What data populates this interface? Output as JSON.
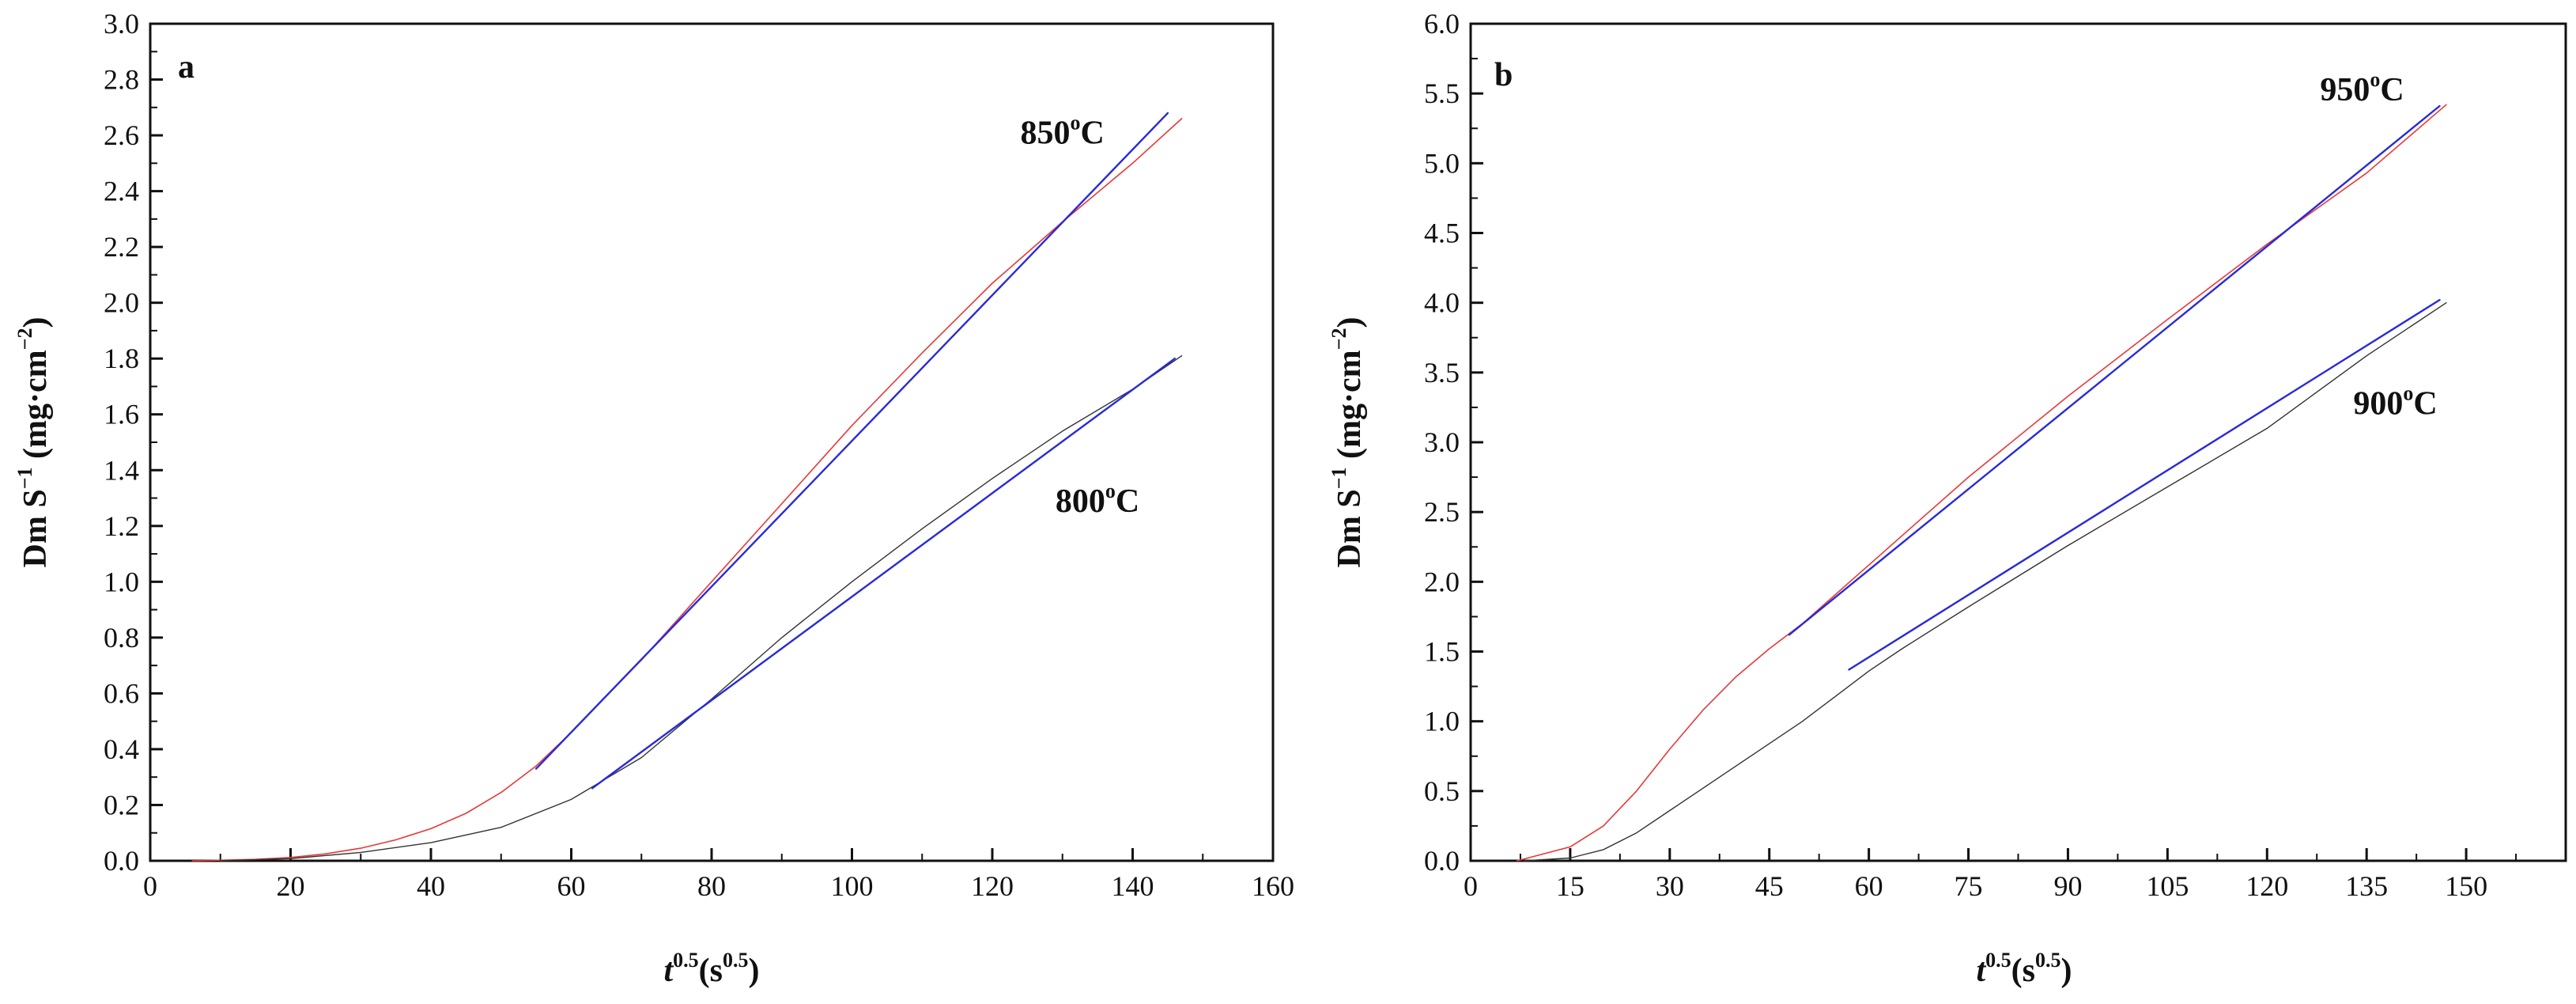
{
  "chart_data": [
    {
      "panel": "a",
      "type": "line",
      "xlabel": {
        "main": "t",
        "sup": "0.5",
        "unit_open": "(s",
        "unit_sup": "0.5",
        "unit_close": ")"
      },
      "ylabel": {
        "main": "Dm S",
        "sup": "−1",
        "unit_open": " (mg·cm",
        "unit_sup": "−2",
        "unit_close": ")"
      },
      "xlim": [
        0,
        160
      ],
      "ylim": [
        0,
        3.0
      ],
      "xticks": [
        "0",
        "20",
        "40",
        "60",
        "80",
        "100",
        "120",
        "140",
        "160"
      ],
      "yticks": [
        "0.0",
        "0.2",
        "0.4",
        "0.6",
        "0.8",
        "1.0",
        "1.2",
        "1.4",
        "1.6",
        "1.8",
        "2.0",
        "2.2",
        "2.4",
        "2.6",
        "2.8",
        "3.0"
      ],
      "annotations": [
        {
          "text": "850",
          "sup": "o",
          "suffix": "C",
          "x": 124,
          "y": 2.57
        },
        {
          "text": "800",
          "sup": "o",
          "suffix": "C",
          "x": 129,
          "y": 1.25
        }
      ],
      "series": [
        {
          "name": "850°C data",
          "color": "#e83838",
          "width": 1.6,
          "points": [
            [
              6,
              0
            ],
            [
              15,
              0.005
            ],
            [
              20,
              0.012
            ],
            [
              25,
              0.025
            ],
            [
              30,
              0.045
            ],
            [
              35,
              0.075
            ],
            [
              40,
              0.115
            ],
            [
              45,
              0.17
            ],
            [
              50,
              0.245
            ],
            [
              55,
              0.34
            ],
            [
              60,
              0.46
            ],
            [
              70,
              0.72
            ],
            [
              80,
              1.0
            ],
            [
              90,
              1.28
            ],
            [
              100,
              1.56
            ],
            [
              110,
              1.82
            ],
            [
              120,
              2.07
            ],
            [
              130,
              2.29
            ],
            [
              140,
              2.5
            ],
            [
              147,
              2.66
            ]
          ]
        },
        {
          "name": "850°C fit",
          "color": "#2a2ad8",
          "width": 2.4,
          "points": [
            [
              55,
              0.33
            ],
            [
              145,
              2.68
            ]
          ]
        },
        {
          "name": "800°C data",
          "color": "#333333",
          "width": 1.4,
          "points": [
            [
              10,
              0
            ],
            [
              20,
              0.008
            ],
            [
              30,
              0.03
            ],
            [
              40,
              0.065
            ],
            [
              50,
              0.12
            ],
            [
              60,
              0.22
            ],
            [
              70,
              0.37
            ],
            [
              80,
              0.58
            ],
            [
              90,
              0.8
            ],
            [
              100,
              1.0
            ],
            [
              110,
              1.19
            ],
            [
              120,
              1.37
            ],
            [
              130,
              1.54
            ],
            [
              140,
              1.69
            ],
            [
              147,
              1.81
            ]
          ]
        },
        {
          "name": "800°C fit",
          "color": "#2a2ad8",
          "width": 2.4,
          "points": [
            [
              63,
              0.26
            ],
            [
              146,
              1.8
            ]
          ]
        }
      ]
    },
    {
      "panel": "b",
      "type": "line",
      "xlabel": {
        "main": "t",
        "sup": "0.5",
        "unit_open": "(s",
        "unit_sup": "0.5",
        "unit_close": ")"
      },
      "ylabel": {
        "main": "Dm S",
        "sup": "−1",
        "unit_open": " (mg·cm",
        "unit_sup": "−2",
        "unit_close": ")"
      },
      "xlim": [
        0,
        165
      ],
      "ylim": [
        0,
        6.0
      ],
      "xticks": [
        "0",
        "15",
        "30",
        "45",
        "60",
        "75",
        "90",
        "105",
        "120",
        "135",
        "150"
      ],
      "yticks": [
        "0.0",
        "0.5",
        "1.0",
        "1.5",
        "2.0",
        "2.5",
        "3.0",
        "3.5",
        "4.0",
        "4.5",
        "5.0",
        "5.5",
        "6.0"
      ],
      "annotations": [
        {
          "text": "950",
          "sup": "o",
          "suffix": "C",
          "x": 128,
          "y": 5.45
        },
        {
          "text": "900",
          "sup": "o",
          "suffix": "C",
          "x": 133,
          "y": 3.2
        }
      ],
      "series": [
        {
          "name": "950°C data",
          "color": "#e83838",
          "width": 1.6,
          "points": [
            [
              7,
              0
            ],
            [
              15,
              0.1
            ],
            [
              20,
              0.25
            ],
            [
              25,
              0.5
            ],
            [
              30,
              0.8
            ],
            [
              35,
              1.08
            ],
            [
              40,
              1.32
            ],
            [
              45,
              1.52
            ],
            [
              50,
              1.7
            ],
            [
              60,
              2.12
            ],
            [
              75,
              2.75
            ],
            [
              90,
              3.33
            ],
            [
              105,
              3.88
            ],
            [
              120,
              4.42
            ],
            [
              135,
              4.93
            ],
            [
              147,
              5.42
            ]
          ]
        },
        {
          "name": "950°C fit",
          "color": "#2a2ad8",
          "width": 2.4,
          "points": [
            [
              48,
              1.62
            ],
            [
              146,
              5.41
            ]
          ]
        },
        {
          "name": "900°C data",
          "color": "#333333",
          "width": 1.4,
          "points": [
            [
              8,
              0
            ],
            [
              15,
              0.02
            ],
            [
              20,
              0.08
            ],
            [
              25,
              0.2
            ],
            [
              30,
              0.36
            ],
            [
              35,
              0.52
            ],
            [
              40,
              0.68
            ],
            [
              45,
              0.84
            ],
            [
              50,
              1.0
            ],
            [
              55,
              1.18
            ],
            [
              60,
              1.36
            ],
            [
              65,
              1.52
            ],
            [
              75,
              1.82
            ],
            [
              90,
              2.26
            ],
            [
              105,
              2.68
            ],
            [
              120,
              3.1
            ],
            [
              135,
              3.62
            ],
            [
              147,
              4.0
            ]
          ]
        },
        {
          "name": "900°C fit",
          "color": "#2a2ad8",
          "width": 2.4,
          "points": [
            [
              57,
              1.37
            ],
            [
              146,
              4.02
            ]
          ]
        }
      ]
    }
  ]
}
